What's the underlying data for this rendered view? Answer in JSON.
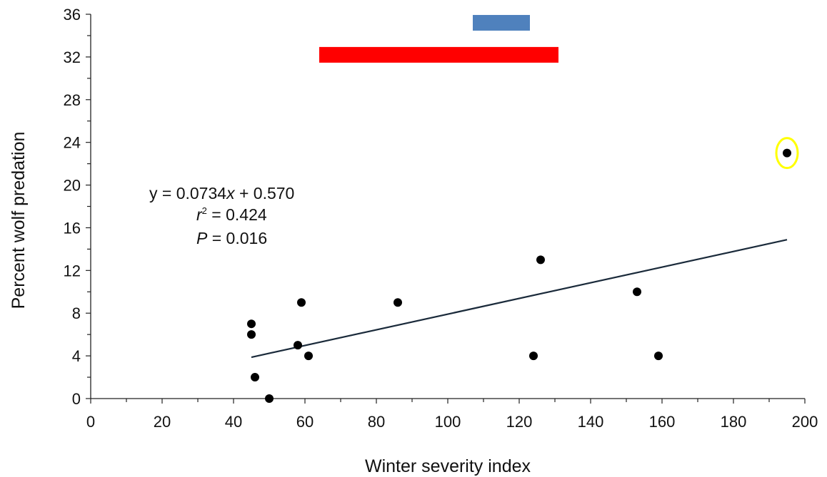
{
  "chart_data": {
    "type": "scatter",
    "xlabel": "Winter severity index",
    "ylabel": "Percent wolf predation",
    "xlim": [
      0,
      200
    ],
    "ylim": [
      0,
      36
    ],
    "x_ticks": [
      "0",
      "20",
      "40",
      "60",
      "80",
      "100",
      "120",
      "140",
      "160",
      "180",
      "200"
    ],
    "y_ticks": [
      "0",
      "4",
      "8",
      "12",
      "16",
      "20",
      "24",
      "28",
      "32",
      "36"
    ],
    "points": [
      {
        "x": 45,
        "y": 7
      },
      {
        "x": 45,
        "y": 6
      },
      {
        "x": 46,
        "y": 2
      },
      {
        "x": 50,
        "y": 0
      },
      {
        "x": 58,
        "y": 5
      },
      {
        "x": 59,
        "y": 9
      },
      {
        "x": 61,
        "y": 4
      },
      {
        "x": 86,
        "y": 9
      },
      {
        "x": 124,
        "y": 4
      },
      {
        "x": 126,
        "y": 13
      },
      {
        "x": 153,
        "y": 10
      },
      {
        "x": 159,
        "y": 4
      },
      {
        "x": 195,
        "y": 23,
        "highlighted": true
      }
    ],
    "trendline": {
      "slope": 0.0734,
      "intercept": 0.57,
      "x_start": 45,
      "x_end": 195
    },
    "annotation": {
      "equation_prefix": "y = 0.0734",
      "equation_var": "x",
      "equation_suffix": " + 0.570",
      "r2_var": "r",
      "r2_sup": "2",
      "r2_value": " = 0.424",
      "p_var": "P",
      "p_value": " = 0.016"
    },
    "range_bars": [
      {
        "x_start": 107,
        "x_end": 123,
        "y": 35.2,
        "color": "#4f81bd"
      },
      {
        "x_start": 64,
        "x_end": 131,
        "y": 32.2,
        "color": "#ff0000"
      }
    ],
    "highlight_color": "#ffff00",
    "point_color": "#000000",
    "grid": false
  }
}
